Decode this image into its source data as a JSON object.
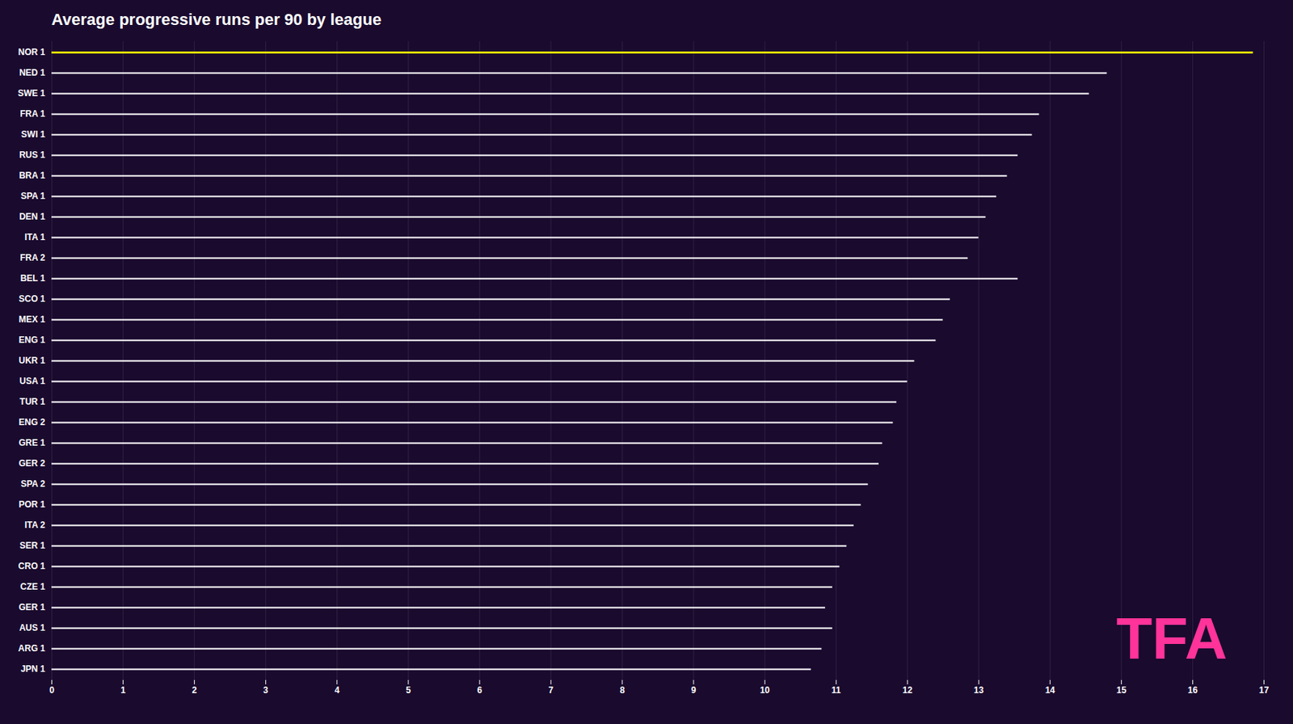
{
  "chart_data": {
    "type": "bar",
    "orientation": "horizontal",
    "title": "Average progressive runs per 90 by league",
    "categories": [
      "NOR 1",
      "NED 1",
      "SWE 1",
      "FRA 1",
      "SWI 1",
      "RUS 1",
      "BRA 1",
      "SPA 1",
      "DEN 1",
      "ITA 1",
      "FRA 2",
      "BEL 1",
      "SCO 1",
      "MEX 1",
      "ENG 1",
      "UKR 1",
      "USA 1",
      "TUR 1",
      "ENG 2",
      "GRE 1",
      "GER 2",
      "SPA 2",
      "POR 1",
      "ITA 2",
      "SER 1",
      "CRO 1",
      "CZE 1",
      "GER 1",
      "AUS 1",
      "ARG 1",
      "JPN 1"
    ],
    "values": [
      16.85,
      14.8,
      14.55,
      13.85,
      13.75,
      13.55,
      13.4,
      13.25,
      13.1,
      13.0,
      12.85,
      13.55,
      12.6,
      12.5,
      12.4,
      12.1,
      12.0,
      11.85,
      11.8,
      11.65,
      11.6,
      11.45,
      11.35,
      11.25,
      11.15,
      11.05,
      10.95,
      10.85,
      10.95,
      10.8,
      10.65
    ],
    "colors": [
      "#ffff00",
      "#ffffff",
      "#ffffff",
      "#ffffff",
      "#ffffff",
      "#ffffff",
      "#ffffff",
      "#ffffff",
      "#ffffff",
      "#ffffff",
      "#ffffff",
      "#ffffff",
      "#ffffff",
      "#ffffff",
      "#ffffff",
      "#ffffff",
      "#ffffff",
      "#ffffff",
      "#ffffff",
      "#ffffff",
      "#ffffff",
      "#ffffff",
      "#ffffff",
      "#ffffff",
      "#ffffff",
      "#ffffff",
      "#ffffff",
      "#ffffff",
      "#ffffff",
      "#ffffff",
      "#ffffff"
    ],
    "xlim": [
      0,
      17
    ],
    "xticks": [
      0,
      1,
      2,
      3,
      4,
      5,
      6,
      7,
      8,
      9,
      10,
      11,
      12,
      13,
      14,
      15,
      16,
      17
    ],
    "grid": true,
    "annotations": [
      {
        "text": "TFA",
        "color": "#ff3399"
      }
    ]
  }
}
